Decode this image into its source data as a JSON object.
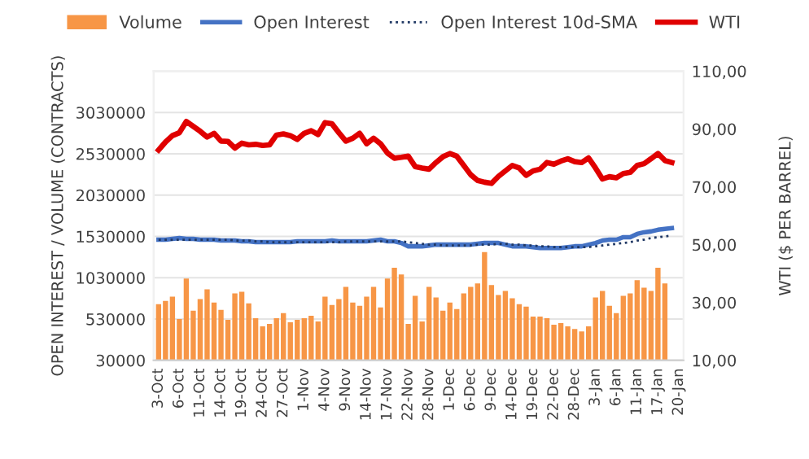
{
  "chart_data": {
    "type": "bar",
    "ylabel": "OPEN INTEREST / VOLUME (CONTRACTS)",
    "y2label": "WTI ($ PER BARREL)",
    "categories": [
      "3-Oct",
      null,
      null,
      "6-Oct",
      null,
      null,
      "11-Oct",
      null,
      null,
      "14-Oct",
      null,
      null,
      "19-Oct",
      null,
      null,
      "24-Oct",
      null,
      null,
      "27-Oct",
      null,
      null,
      "1-Nov",
      null,
      null,
      "4-Nov",
      null,
      null,
      "9-Nov",
      null,
      null,
      "14-Nov",
      null,
      null,
      "17-Nov",
      null,
      null,
      "22-Nov",
      null,
      null,
      "28-Nov",
      null,
      null,
      "1-Dec",
      null,
      null,
      "6-Dec",
      null,
      null,
      "9-Dec",
      null,
      null,
      "14-Dec",
      null,
      null,
      "19-Dec",
      null,
      null,
      "22-Dec",
      null,
      null,
      "28-Dec",
      null,
      null,
      "3-Jan",
      null,
      null,
      "6-Jan",
      null,
      null,
      "11-Jan",
      null,
      null,
      "17-Jan",
      null,
      null,
      "20-Jan"
    ],
    "series": [
      {
        "name": "Volume",
        "color": "#f79646",
        "values": [
          710000,
          750000,
          800000,
          530000,
          1020000,
          630000,
          770000,
          890000,
          730000,
          640000,
          520000,
          840000,
          860000,
          720000,
          540000,
          440000,
          470000,
          540000,
          600000,
          490000,
          520000,
          540000,
          570000,
          500000,
          800000,
          700000,
          770000,
          920000,
          730000,
          690000,
          800000,
          920000,
          670000,
          1020000,
          1150000,
          1070000,
          470000,
          810000,
          500000,
          920000,
          790000,
          630000,
          730000,
          650000,
          840000,
          920000,
          960000,
          1340000,
          940000,
          820000,
          870000,
          780000,
          710000,
          680000,
          560000,
          560000,
          540000,
          460000,
          480000,
          440000,
          410000,
          380000,
          440000,
          790000,
          870000,
          690000,
          600000,
          810000,
          840000,
          1000000,
          910000,
          870000,
          1150000,
          960000,
          null,
          null
        ]
      },
      {
        "name": "Open Interest",
        "type": "line",
        "color": "#4472c4",
        "line_style": "solid",
        "values": [
          1490000,
          1490000,
          1500000,
          1510000,
          1500000,
          1500000,
          1490000,
          1490000,
          1490000,
          1480000,
          1480000,
          1480000,
          1470000,
          1470000,
          1460000,
          1460000,
          1460000,
          1460000,
          1460000,
          1460000,
          1470000,
          1470000,
          1470000,
          1470000,
          1470000,
          1480000,
          1470000,
          1470000,
          1470000,
          1470000,
          1470000,
          1480000,
          1490000,
          1470000,
          1470000,
          1450000,
          1410000,
          1410000,
          1410000,
          1420000,
          1430000,
          1430000,
          1430000,
          1430000,
          1430000,
          1430000,
          1440000,
          1450000,
          1450000,
          1450000,
          1430000,
          1410000,
          1410000,
          1410000,
          1400000,
          1390000,
          1390000,
          1390000,
          1390000,
          1400000,
          1410000,
          1410000,
          1430000,
          1450000,
          1480000,
          1490000,
          1490000,
          1520000,
          1520000,
          1560000,
          1580000,
          1590000,
          1610000,
          1620000,
          1630000,
          null
        ]
      },
      {
        "name": "Open Interest 10d-SMA",
        "type": "line",
        "color": "#203864",
        "line_style": "dotted",
        "values": [
          1490000,
          1490000,
          1490000,
          1490000,
          1490000,
          1490000,
          1490000,
          1490000,
          1490000,
          1490000,
          1490000,
          1480000,
          1480000,
          1480000,
          1470000,
          1470000,
          1460000,
          1460000,
          1460000,
          1460000,
          1460000,
          1460000,
          1460000,
          1460000,
          1460000,
          1460000,
          1460000,
          1470000,
          1470000,
          1470000,
          1470000,
          1470000,
          1470000,
          1470000,
          1470000,
          1470000,
          1460000,
          1450000,
          1440000,
          1430000,
          1430000,
          1420000,
          1420000,
          1420000,
          1420000,
          1420000,
          1430000,
          1430000,
          1430000,
          1440000,
          1440000,
          1430000,
          1430000,
          1420000,
          1420000,
          1410000,
          1410000,
          1400000,
          1400000,
          1400000,
          1400000,
          1400000,
          1400000,
          1410000,
          1420000,
          1430000,
          1440000,
          1450000,
          1460000,
          1480000,
          1490000,
          1510000,
          1520000,
          1530000,
          1540000,
          null
        ]
      },
      {
        "name": "WTI",
        "type": "line",
        "axis": "y2",
        "color": "#e00000",
        "line_style": "solid",
        "values": [
          82.7,
          85.5,
          87.7,
          88.7,
          92.6,
          90.9,
          89.2,
          87.2,
          88.5,
          85.8,
          85.7,
          83.4,
          85.1,
          84.5,
          84.7,
          84.3,
          84.5,
          87.9,
          88.3,
          87.7,
          86.4,
          88.5,
          89.4,
          88.1,
          92.2,
          91.8,
          88.7,
          85.8,
          86.8,
          88.5,
          84.9,
          86.8,
          84.9,
          81.7,
          79.9,
          80.2,
          80.6,
          77.0,
          76.5,
          76.1,
          78.4,
          80.4,
          81.5,
          80.6,
          77.4,
          74.2,
          72.2,
          71.6,
          71.2,
          73.6,
          75.5,
          77.4,
          76.5,
          74.0,
          75.5,
          76.1,
          78.4,
          77.8,
          78.9,
          79.7,
          78.7,
          78.4,
          80.0,
          76.5,
          72.7,
          73.5,
          73.1,
          74.6,
          75.0,
          77.4,
          78.0,
          79.7,
          81.5,
          79.1,
          78.4,
          null
        ]
      }
    ],
    "ylim": [
      30000,
      3530000
    ],
    "yticks": [
      30000,
      530000,
      1030000,
      1530000,
      2030000,
      2530000,
      3030000,
      {
        "value": 3530000,
        "label": null
      }
    ],
    "y2lim": [
      10,
      110
    ],
    "y2ticks": [
      {
        "value": 10,
        "label": "10,00"
      },
      {
        "value": 30,
        "label": "30,00"
      },
      {
        "value": 50,
        "label": "50,00"
      },
      {
        "value": 70,
        "label": "70,00"
      },
      {
        "value": 90,
        "label": "90,00"
      },
      {
        "value": 110,
        "label": "110,00"
      }
    ],
    "grid": "y",
    "legend": "top"
  }
}
